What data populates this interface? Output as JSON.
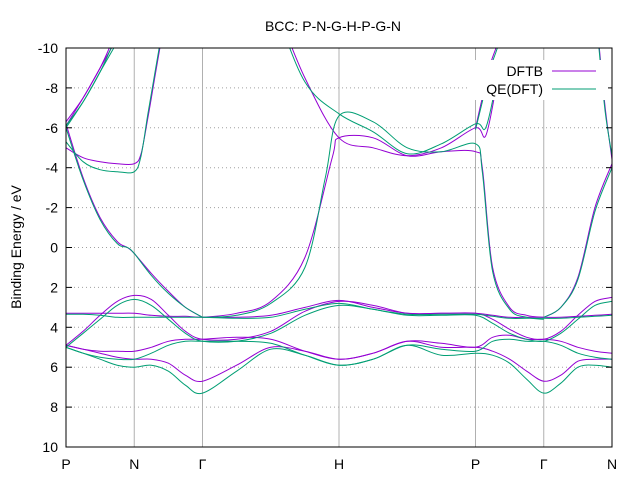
{
  "chart_data": {
    "type": "line",
    "title": "BCC: P-N-G-H-P-G-N",
    "ylabel": "Binding Energy / eV",
    "xlabel": "",
    "x_ticks": [
      {
        "label": "P",
        "x": 0.0
      },
      {
        "label": "N",
        "x": 1.0
      },
      {
        "label": "Γ",
        "x": 2.0
      },
      {
        "label": "H",
        "x": 4.0
      },
      {
        "label": "P",
        "x": 6.0
      },
      {
        "label": "Γ",
        "x": 7.0
      },
      {
        "label": "N",
        "x": 8.0
      }
    ],
    "xlim": [
      0,
      8
    ],
    "ylim": [
      10,
      -10
    ],
    "y_ticks": [
      -10,
      -8,
      -6,
      -4,
      -2,
      0,
      2,
      4,
      6,
      8,
      10
    ],
    "y_tick_labels": [
      "-10",
      "-8",
      "-6",
      "-4",
      "-2",
      "0",
      "2",
      "4",
      "6",
      "8",
      "10"
    ],
    "grid": "dotted horizontal, solid vertical at high-symmetry points",
    "legend_position": "top-right",
    "series": [
      {
        "name": "DFTB",
        "color": "#9400d3",
        "bands": [
          {
            "x": [
              0,
              0.25,
              0.5,
              0.75,
              1.0,
              1.25,
              1.5,
              1.75,
              2.0,
              2.5,
              3.0,
              3.5,
              4.0,
              4.5,
              5.0,
              5.5,
              6.0,
              6.25,
              6.5,
              6.75,
              7.0,
              7.25,
              7.5,
              7.75,
              8.0
            ],
            "y": [
              3.3,
              3.3,
              3.3,
              3.3,
              3.3,
              3.4,
              3.45,
              3.45,
              3.5,
              3.5,
              3.4,
              3.0,
              2.65,
              3.0,
              3.3,
              3.3,
              3.3,
              3.4,
              3.5,
              3.5,
              3.5,
              3.5,
              3.45,
              3.4,
              3.35
            ]
          },
          {
            "x": [
              0,
              0.25,
              0.5,
              0.75,
              1.0,
              1.25,
              1.5,
              1.75,
              2.0,
              2.5,
              3.0,
              3.5,
              4.0,
              4.5,
              5.0,
              5.5,
              6.0,
              6.25,
              6.5,
              6.75,
              7.0,
              7.25,
              7.5,
              7.75,
              8.0
            ],
            "y": [
              4.9,
              4.2,
              3.4,
              2.7,
              2.4,
              2.6,
              3.4,
              4.2,
              4.6,
              4.6,
              4.2,
              3.2,
              2.7,
              2.9,
              3.3,
              3.3,
              3.3,
              3.6,
              4.1,
              4.5,
              4.6,
              4.2,
              3.4,
              2.7,
              2.5
            ]
          },
          {
            "x": [
              0,
              0.25,
              0.5,
              0.75,
              1.0,
              1.25,
              1.5,
              1.75,
              2.0,
              2.5,
              3.0,
              3.5,
              4.0,
              4.5,
              5.0,
              5.5,
              6.0,
              6.25,
              6.5,
              6.75,
              7.0,
              7.25,
              7.5,
              7.75,
              8.0
            ],
            "y": [
              4.9,
              5.1,
              5.2,
              5.2,
              5.2,
              5.0,
              4.7,
              4.6,
              4.6,
              4.5,
              4.6,
              5.2,
              5.6,
              5.3,
              4.7,
              4.8,
              5.0,
              4.5,
              4.4,
              4.6,
              4.6,
              4.7,
              5.0,
              5.2,
              5.3
            ]
          },
          {
            "x": [
              0,
              0.25,
              0.5,
              0.75,
              1.0,
              1.25,
              1.5,
              1.75,
              2.0,
              2.5,
              3.0,
              3.5,
              4.0,
              4.5,
              5.0,
              5.5,
              6.0,
              6.25,
              6.5,
              6.75,
              7.0,
              7.25,
              7.5,
              7.75,
              8.0
            ],
            "y": [
              4.9,
              5.1,
              5.3,
              5.5,
              5.6,
              5.6,
              5.8,
              6.4,
              6.7,
              5.9,
              5.0,
              5.2,
              5.6,
              5.3,
              4.7,
              5.0,
              5.0,
              5.2,
              5.6,
              6.2,
              6.7,
              6.4,
              5.7,
              5.6,
              5.6
            ]
          },
          {
            "x": [
              0,
              0.25,
              0.5,
              0.75,
              1.0,
              1.12,
              1.25,
              1.5,
              1.75,
              2.0
            ],
            "y": [
              -6.3,
              -7.5,
              -9.0,
              -10.5,
              -12.0,
              -13.5,
              -15.0,
              -16.0,
              -17.0,
              -18.0
            ]
          },
          {
            "x": [
              0,
              0.25,
              0.5,
              0.75,
              1.0,
              1.1,
              1.2,
              1.3,
              1.4,
              1.5
            ],
            "y": [
              -5.0,
              -4.5,
              -4.3,
              -4.2,
              -4.2,
              -4.7,
              -6.5,
              -8.5,
              -10.5,
              -12.5
            ]
          },
          {
            "x": [
              0,
              0.25,
              0.5,
              0.75,
              0.9,
              1.0,
              1.25,
              1.5,
              1.75,
              2.0
            ],
            "y": [
              -6.2,
              -3.5,
              -1.5,
              -0.3,
              0.0,
              0.3,
              1.3,
              2.2,
              3.0,
              3.5
            ]
          },
          {
            "x": [
              2.0,
              2.5,
              3.0,
              3.5,
              3.9,
              4.0,
              4.5,
              5.0,
              5.5,
              6.0,
              6.1,
              6.25,
              6.5,
              6.75,
              7.0
            ],
            "y": [
              3.5,
              3.3,
              2.7,
              0.5,
              -4.5,
              -5.5,
              -5.5,
              -4.6,
              -4.8,
              -4.8,
              -4.0,
              1.0,
              3.0,
              3.4,
              3.5
            ]
          },
          {
            "x": [
              2.0,
              2.5,
              3.0,
              3.5,
              4.0,
              4.5,
              5.0,
              5.5,
              6.0,
              6.15,
              6.3
            ],
            "y": [
              -16.0,
              -15.0,
              -12.5,
              -8.5,
              -5.5,
              -5.0,
              -4.6,
              -5.0,
              -6.0,
              -5.6,
              -8.0
            ]
          },
          {
            "x": [
              0,
              0.25,
              0.5,
              0.7,
              0.9
            ],
            "y": [
              -6.1,
              -7.5,
              -9.0,
              -10.5,
              -12.0
            ]
          },
          {
            "x": [
              7.0,
              7.25,
              7.5,
              7.75,
              8.0
            ],
            "y": [
              3.5,
              3.0,
              1.5,
              -2.0,
              -4.2
            ]
          },
          {
            "x": [
              7.8,
              7.9,
              8.0
            ],
            "y": [
              -10.5,
              -7.0,
              -4.4
            ]
          },
          {
            "x": [
              6.0,
              6.1,
              6.2,
              6.3,
              6.4
            ],
            "y": [
              -6.0,
              -7.5,
              -9.0,
              -10.0,
              -11.0
            ]
          }
        ]
      },
      {
        "name": "QE(DFT)",
        "color": "#009e73",
        "bands": [
          {
            "x": [
              0,
              0.25,
              0.5,
              0.75,
              1.0,
              1.25,
              1.5,
              1.75,
              2.0,
              2.5,
              3.0,
              3.5,
              4.0,
              4.5,
              5.0,
              5.5,
              6.0,
              6.25,
              6.5,
              6.75,
              7.0,
              7.25,
              7.5,
              7.75,
              8.0
            ],
            "y": [
              3.35,
              3.35,
              3.4,
              3.5,
              3.5,
              3.5,
              3.5,
              3.5,
              3.5,
              3.55,
              3.5,
              3.1,
              2.8,
              3.1,
              3.35,
              3.35,
              3.35,
              3.45,
              3.55,
              3.55,
              3.55,
              3.55,
              3.5,
              3.45,
              3.4
            ]
          },
          {
            "x": [
              0,
              0.25,
              0.5,
              0.75,
              1.0,
              1.25,
              1.5,
              1.75,
              2.0,
              2.5,
              3.0,
              3.5,
              4.0,
              4.5,
              5.0,
              5.5,
              6.0,
              6.25,
              6.5,
              6.75,
              7.0,
              7.25,
              7.5,
              7.75,
              8.0
            ],
            "y": [
              5.0,
              4.3,
              3.6,
              2.9,
              2.6,
              2.9,
              3.6,
              4.3,
              4.7,
              4.7,
              4.3,
              3.4,
              2.9,
              3.1,
              3.4,
              3.4,
              3.4,
              3.8,
              4.3,
              4.6,
              4.7,
              4.3,
              3.6,
              2.9,
              2.7
            ]
          },
          {
            "x": [
              0,
              0.25,
              0.5,
              0.75,
              1.0,
              1.25,
              1.5,
              1.75,
              2.0,
              2.5,
              3.0,
              3.5,
              4.0,
              4.5,
              5.0,
              5.5,
              6.0,
              6.25,
              6.5,
              6.75,
              7.0,
              7.25,
              7.5,
              7.75,
              8.0
            ],
            "y": [
              5.0,
              5.3,
              5.5,
              5.6,
              5.6,
              5.3,
              4.9,
              4.7,
              4.7,
              4.7,
              4.8,
              5.4,
              5.9,
              5.6,
              4.9,
              5.1,
              5.2,
              4.7,
              4.6,
              4.7,
              4.7,
              4.9,
              5.3,
              5.5,
              5.6
            ]
          },
          {
            "x": [
              0,
              0.25,
              0.5,
              0.75,
              1.0,
              1.25,
              1.5,
              1.75,
              2.0,
              2.5,
              3.0,
              3.5,
              4.0,
              4.5,
              5.0,
              5.5,
              6.0,
              6.25,
              6.5,
              6.75,
              7.0,
              7.25,
              7.5,
              7.75,
              8.0
            ],
            "y": [
              5.0,
              5.3,
              5.6,
              5.9,
              6.0,
              5.9,
              6.2,
              6.9,
              7.3,
              6.2,
              5.1,
              5.4,
              5.9,
              5.6,
              4.9,
              5.4,
              5.3,
              5.4,
              5.8,
              6.6,
              7.3,
              6.8,
              6.0,
              5.9,
              6.0
            ]
          },
          {
            "x": [
              0,
              0.25,
              0.5,
              0.75,
              1.0,
              1.12,
              1.25,
              1.5,
              1.75,
              2.0
            ],
            "y": [
              -6.1,
              -7.3,
              -8.8,
              -10.3,
              -11.8,
              -13.3,
              -14.8,
              -15.8,
              -16.8,
              -17.8
            ]
          },
          {
            "x": [
              0,
              0.25,
              0.5,
              0.75,
              1.0,
              1.1,
              1.2,
              1.3,
              1.4,
              1.5
            ],
            "y": [
              -5.3,
              -4.3,
              -3.9,
              -3.8,
              -3.8,
              -4.6,
              -6.7,
              -8.7,
              -10.7,
              -12.7
            ]
          },
          {
            "x": [
              0,
              0.25,
              0.5,
              0.75,
              0.9,
              1.0,
              1.25,
              1.5,
              1.75,
              2.0
            ],
            "y": [
              -6.0,
              -3.4,
              -1.4,
              -0.2,
              0.0,
              0.3,
              1.4,
              2.3,
              3.0,
              3.5
            ]
          },
          {
            "x": [
              2.0,
              2.5,
              3.0,
              3.5,
              3.8,
              4.0,
              4.5,
              5.0,
              5.5,
              6.0,
              6.1,
              6.25,
              6.5,
              6.75,
              7.0
            ],
            "y": [
              3.5,
              3.4,
              2.8,
              1.0,
              -3.5,
              -6.6,
              -6.3,
              -5.0,
              -4.8,
              -5.2,
              -3.8,
              1.2,
              3.1,
              3.5,
              3.6
            ]
          },
          {
            "x": [
              2.0,
              2.5,
              3.0,
              3.5,
              4.0,
              4.5,
              5.0,
              5.5,
              6.0,
              6.15,
              6.3
            ],
            "y": [
              -16.0,
              -14.8,
              -12.3,
              -8.3,
              -6.7,
              -5.8,
              -4.7,
              -5.2,
              -6.2,
              -6.0,
              -8.2
            ]
          },
          {
            "x": [
              0,
              0.25,
              0.5,
              0.7,
              0.9
            ],
            "y": [
              -6.0,
              -7.3,
              -8.8,
              -10.3,
              -11.8
            ]
          },
          {
            "x": [
              7.0,
              7.25,
              7.5,
              7.75,
              8.0
            ],
            "y": [
              3.5,
              3.0,
              1.6,
              -1.8,
              -4.0
            ]
          },
          {
            "x": [
              7.8,
              7.9,
              8.0
            ],
            "y": [
              -10.3,
              -6.8,
              -4.6
            ]
          },
          {
            "x": [
              6.0,
              6.1,
              6.2,
              6.3,
              6.4
            ],
            "y": [
              -5.9,
              -7.3,
              -8.8,
              -9.8,
              -10.8
            ]
          }
        ]
      }
    ]
  }
}
